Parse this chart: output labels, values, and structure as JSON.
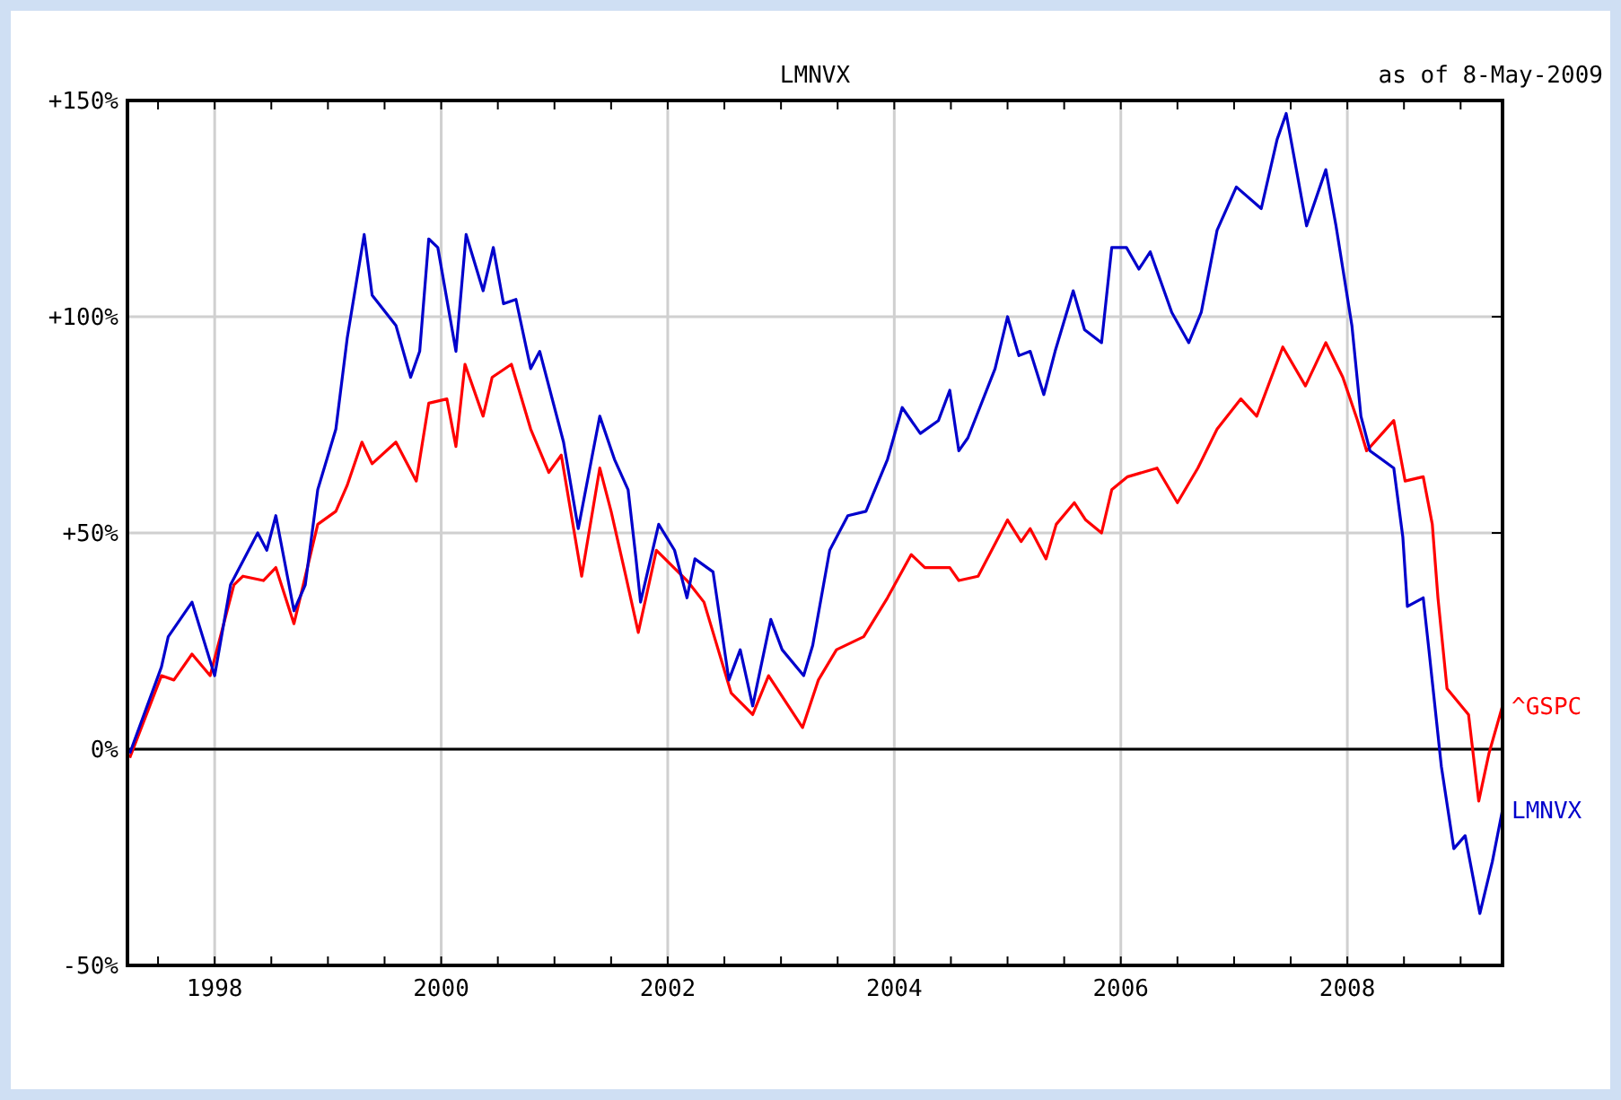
{
  "chart_data": {
    "type": "line",
    "title": "LMNVX",
    "subtitle": "as of  8-May-2009",
    "xlim": [
      1997.23,
      2009.37
    ],
    "ylim": [
      -50,
      150
    ],
    "xticks": [
      {
        "value": 1997.5,
        "label": null
      },
      {
        "value": 1998,
        "label": "1998"
      },
      {
        "value": 1998.5,
        "label": null
      },
      {
        "value": 1999,
        "label": null
      },
      {
        "value": 1999.5,
        "label": null
      },
      {
        "value": 2000,
        "label": "2000"
      },
      {
        "value": 2000.5,
        "label": null
      },
      {
        "value": 2001,
        "label": null
      },
      {
        "value": 2001.5,
        "label": null
      },
      {
        "value": 2002,
        "label": "2002"
      },
      {
        "value": 2002.5,
        "label": null
      },
      {
        "value": 2003,
        "label": null
      },
      {
        "value": 2003.5,
        "label": null
      },
      {
        "value": 2004,
        "label": "2004"
      },
      {
        "value": 2004.5,
        "label": null
      },
      {
        "value": 2005,
        "label": null
      },
      {
        "value": 2005.5,
        "label": null
      },
      {
        "value": 2006,
        "label": "2006"
      },
      {
        "value": 2006.5,
        "label": null
      },
      {
        "value": 2007,
        "label": null
      },
      {
        "value": 2007.5,
        "label": null
      },
      {
        "value": 2008,
        "label": "2008"
      },
      {
        "value": 2008.5,
        "label": null
      },
      {
        "value": 2009,
        "label": null
      }
    ],
    "yticks": [
      {
        "value": -50,
        "label": "-50%"
      },
      {
        "value": 0,
        "label": "0%"
      },
      {
        "value": 50,
        "label": "+50%"
      },
      {
        "value": 100,
        "label": "+100%"
      },
      {
        "value": 150,
        "label": "+150%"
      }
    ],
    "grid": true,
    "line_style": "solid",
    "marker": "none",
    "ref_lines": [
      {
        "axis": "y",
        "value": 0,
        "color": "#000000"
      }
    ],
    "series": [
      {
        "name": "^GSPC",
        "color": "#ff0000",
        "x": [
          1997.25,
          1997.53,
          1997.64,
          1997.8,
          1997.96,
          1998.17,
          1998.25,
          1998.43,
          1998.54,
          1998.7,
          1998.91,
          1999.07,
          1999.17,
          1999.3,
          1999.39,
          1999.6,
          1999.78,
          1999.89,
          2000.05,
          2000.13,
          2000.21,
          2000.37,
          2000.45,
          2000.62,
          2000.79,
          2000.95,
          2001.06,
          2001.24,
          2001.4,
          2001.5,
          2001.63,
          2001.74,
          2001.9,
          2002.17,
          2002.32,
          2002.56,
          2002.75,
          2002.89,
          2003.19,
          2003.33,
          2003.49,
          2003.73,
          2003.94,
          2004.15,
          2004.27,
          2004.49,
          2004.57,
          2004.74,
          2005.0,
          2005.12,
          2005.2,
          2005.34,
          2005.43,
          2005.59,
          2005.69,
          2005.83,
          2005.92,
          2006.06,
          2006.32,
          2006.5,
          2006.68,
          2006.85,
          2007.06,
          2007.2,
          2007.43,
          2007.63,
          2007.81,
          2007.96,
          2008.09,
          2008.17,
          2008.41,
          2008.51,
          2008.67,
          2008.75,
          2008.8,
          2008.88,
          2009.07,
          2009.16,
          2009.25,
          2009.37
        ],
        "values": [
          -2,
          17,
          16,
          22,
          17,
          38,
          40,
          39,
          42,
          29,
          52,
          55,
          61,
          71,
          66,
          71,
          62,
          80,
          81,
          70,
          89,
          77,
          86,
          89,
          74,
          64,
          68,
          40,
          65,
          55,
          40,
          27,
          46,
          39,
          34,
          13,
          8,
          17,
          5,
          16,
          23,
          26,
          35,
          45,
          42,
          42,
          39,
          40,
          53,
          48,
          51,
          44,
          52,
          57,
          53,
          50,
          60,
          63,
          65,
          57,
          65,
          74,
          81,
          77,
          93,
          84,
          94,
          86,
          76,
          69,
          76,
          62,
          63,
          52,
          35,
          14,
          8,
          -12,
          -1,
          10
        ]
      },
      {
        "name": "LMNVX",
        "color": "#0000cc",
        "x": [
          1997.25,
          1997.53,
          1997.59,
          1997.8,
          1998.0,
          1998.14,
          1998.38,
          1998.46,
          1998.54,
          1998.7,
          1998.8,
          1998.91,
          1999.07,
          1999.17,
          1999.32,
          1999.39,
          1999.6,
          1999.73,
          1999.81,
          1999.89,
          1999.97,
          2000.13,
          2000.22,
          2000.37,
          2000.46,
          2000.55,
          2000.66,
          2000.79,
          2000.87,
          2001.08,
          2001.21,
          2001.4,
          2001.53,
          2001.65,
          2001.72,
          2001.76,
          2001.92,
          2002.06,
          2002.17,
          2002.24,
          2002.4,
          2002.54,
          2002.64,
          2002.75,
          2002.91,
          2003.01,
          2003.2,
          2003.28,
          2003.43,
          2003.59,
          2003.75,
          2003.94,
          2004.07,
          2004.23,
          2004.39,
          2004.49,
          2004.57,
          2004.65,
          2004.89,
          2005.0,
          2005.1,
          2005.2,
          2005.32,
          2005.42,
          2005.58,
          2005.68,
          2005.83,
          2005.92,
          2006.05,
          2006.16,
          2006.26,
          2006.45,
          2006.6,
          2006.71,
          2006.85,
          2007.02,
          2007.24,
          2007.38,
          2007.46,
          2007.64,
          2007.81,
          2007.9,
          2008.04,
          2008.12,
          2008.2,
          2008.41,
          2008.49,
          2008.53,
          2008.67,
          2008.72,
          2008.83,
          2008.94,
          2009.04,
          2009.17,
          2009.28,
          2009.37
        ],
        "values": [
          -1,
          19,
          26,
          34,
          17,
          38,
          50,
          46,
          54,
          32,
          38,
          60,
          74,
          95,
          119,
          105,
          98,
          86,
          92,
          118,
          116,
          92,
          119,
          106,
          116,
          103,
          104,
          88,
          92,
          71,
          51,
          77,
          67,
          60,
          44,
          34,
          52,
          46,
          35,
          44,
          41,
          16,
          23,
          10,
          30,
          23,
          17,
          24,
          46,
          54,
          55,
          67,
          79,
          73,
          76,
          83,
          69,
          72,
          88,
          100,
          91,
          92,
          82,
          92,
          106,
          97,
          94,
          116,
          116,
          111,
          115,
          101,
          94,
          101,
          120,
          130,
          125,
          141,
          147,
          121,
          134,
          121,
          98,
          77,
          69,
          65,
          49,
          33,
          35,
          23,
          -4,
          -23,
          -20,
          -38,
          -26,
          -14
        ]
      }
    ]
  }
}
